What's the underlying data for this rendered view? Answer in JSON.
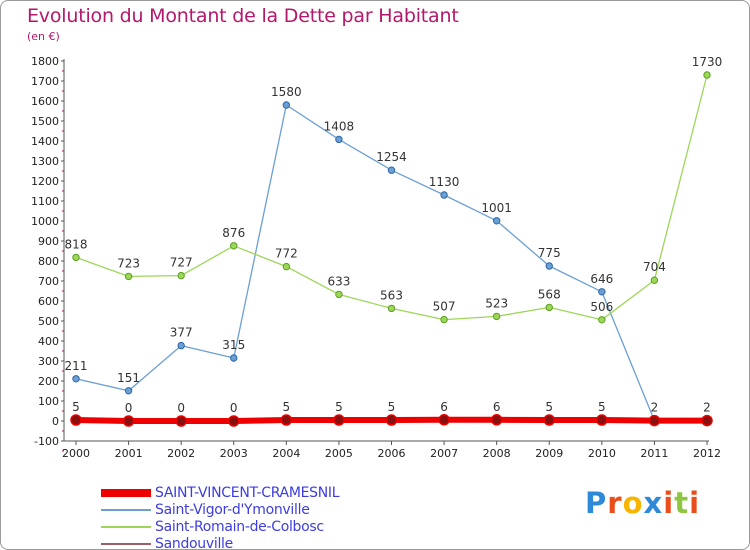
{
  "title": "Evolution du Montant de la Dette par Habitant",
  "subtitle": "(en €)",
  "brand": {
    "letters": [
      "P",
      "r",
      "o",
      "x",
      "i",
      "t",
      "i"
    ],
    "colors": [
      "#2e8ad8",
      "#e94e1b",
      "#f7b500",
      "#2e8ad8",
      "#e94e1b",
      "#8dc63f",
      "#e94e1b"
    ]
  },
  "chart_data": {
    "type": "line",
    "title": "Evolution du Montant de la Dette par Habitant",
    "subtitle": "(en €)",
    "categories": [
      "2000",
      "2001",
      "2002",
      "2003",
      "2004",
      "2005",
      "2006",
      "2007",
      "2008",
      "2009",
      "2010",
      "2011",
      "2012"
    ],
    "ylim": [
      -100,
      1800
    ],
    "yticks": [
      -100,
      0,
      100,
      200,
      300,
      400,
      500,
      600,
      700,
      800,
      900,
      1000,
      1100,
      1200,
      1300,
      1400,
      1500,
      1600,
      1700,
      1800
    ],
    "grid": false,
    "legend_position": "bottom-left",
    "series": [
      {
        "name": "SAINT-VINCENT-CRAMESNIL",
        "color": "#ee0000",
        "values": [
          5,
          0,
          0,
          0,
          5,
          5,
          5,
          6,
          6,
          5,
          5,
          2,
          2
        ],
        "labels": [
          "5",
          "0",
          "0",
          "0",
          "5",
          "5",
          "5",
          "6",
          "6",
          "5",
          "5",
          "2",
          "2"
        ],
        "thick": true
      },
      {
        "name": "Saint-Vigor-d'Ymonville",
        "color": "#6c9fd4",
        "values": [
          211,
          151,
          377,
          315,
          1580,
          1408,
          1254,
          1130,
          1001,
          775,
          646,
          2,
          2
        ],
        "labels": [
          "211",
          "151",
          "377",
          "315",
          "1580",
          "1408",
          "1254",
          "1130",
          "1001",
          "775",
          "646",
          "",
          ""
        ]
      },
      {
        "name": "Saint-Romain-de-Colbosc",
        "color": "#9ed65a",
        "values": [
          818,
          723,
          727,
          876,
          772,
          633,
          563,
          507,
          523,
          568,
          506,
          704,
          1730
        ],
        "labels": [
          "818",
          "723",
          "727",
          "876",
          "772",
          "633",
          "563",
          "507",
          "523",
          "568",
          "506",
          "704",
          "1730"
        ]
      },
      {
        "name": "Sandouville",
        "color": "#9b5f66",
        "values": [
          0,
          0,
          0,
          0,
          0,
          0,
          0,
          0,
          0,
          0,
          0,
          0,
          0
        ],
        "labels": []
      }
    ]
  }
}
